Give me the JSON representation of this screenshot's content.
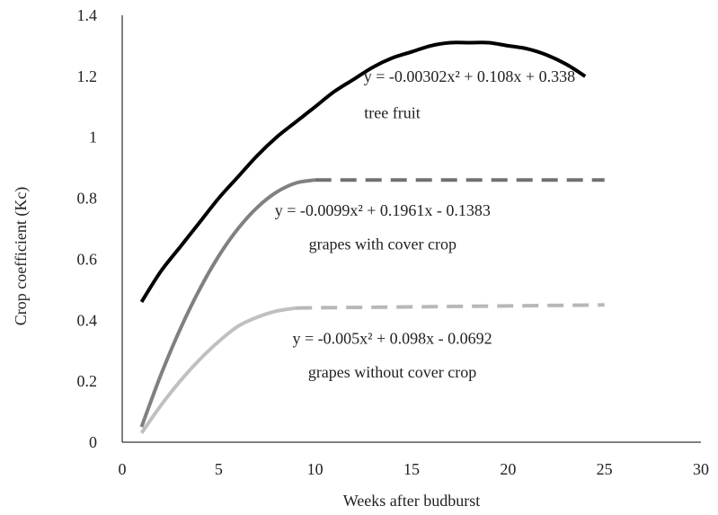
{
  "chart_data": {
    "type": "line",
    "title": "",
    "xlabel": "Weeks after budburst",
    "ylabel": "Crop coefficient (Kc)",
    "xlim": [
      0,
      30
    ],
    "ylim": [
      0,
      1.4
    ],
    "x_ticks": [
      "0",
      "5",
      "10",
      "15",
      "20",
      "25",
      "30"
    ],
    "y_ticks": [
      "0",
      "0.2",
      "0.4",
      "0.6",
      "0.8",
      "1",
      "1.2",
      "1.4"
    ],
    "grid": false,
    "legend": "none",
    "series": [
      {
        "key": "tree",
        "color": "#000000",
        "style": "solid",
        "x": [
          1,
          2,
          3,
          4,
          5,
          6,
          7,
          8,
          9,
          10,
          11,
          12,
          13,
          14,
          15,
          16,
          17,
          18,
          19,
          20,
          21,
          22,
          23,
          24
        ],
        "y": [
          0.46,
          0.56,
          0.64,
          0.72,
          0.8,
          0.87,
          0.94,
          1.0,
          1.05,
          1.1,
          1.15,
          1.19,
          1.23,
          1.26,
          1.28,
          1.3,
          1.31,
          1.31,
          1.31,
          1.3,
          1.29,
          1.27,
          1.24,
          1.2
        ]
      },
      {
        "key": "cover",
        "color": "#808080",
        "style": "solid",
        "x": [
          1,
          2,
          3,
          4,
          5,
          6,
          7,
          8,
          9,
          10
        ],
        "y": [
          0.05,
          0.22,
          0.37,
          0.5,
          0.61,
          0.7,
          0.77,
          0.82,
          0.85,
          0.86
        ]
      },
      {
        "key": "cover_plateau",
        "color": "#707070",
        "style": "dashed",
        "x": [
          10,
          25
        ],
        "y": [
          0.86,
          0.86
        ]
      },
      {
        "key": "nocover",
        "color": "#c0c0c0",
        "style": "solid",
        "x": [
          1,
          2,
          3,
          4,
          5,
          6,
          7,
          8,
          9
        ],
        "y": [
          0.03,
          0.12,
          0.2,
          0.27,
          0.33,
          0.38,
          0.41,
          0.43,
          0.44
        ]
      },
      {
        "key": "nocover_plateau",
        "color": "#b8b8b8",
        "style": "dashed",
        "x": [
          9,
          25
        ],
        "y": [
          0.44,
          0.45
        ]
      }
    ],
    "annotations": [
      {
        "key": "tree_eq",
        "x": 18,
        "y": 1.2,
        "anchor": "middle",
        "text": "y = -0.00302x² +  0.108x + 0.338"
      },
      {
        "key": "tree_name",
        "x": 14,
        "y": 1.08,
        "anchor": "middle",
        "text": "tree fruit"
      },
      {
        "key": "cover_eq",
        "x": 13.5,
        "y": 0.76,
        "anchor": "middle",
        "text": "y = -0.0099x²  + 0.1961x - 0.1383"
      },
      {
        "key": "cover_name",
        "x": 13.5,
        "y": 0.65,
        "anchor": "middle",
        "text": "grapes with cover crop"
      },
      {
        "key": "nocover_eq",
        "x": 14,
        "y": 0.34,
        "anchor": "middle",
        "text": "y = -0.005x² + 0.098x - 0.0692"
      },
      {
        "key": "nocover_name",
        "x": 14,
        "y": 0.23,
        "anchor": "middle",
        "text": "grapes without cover crop"
      }
    ]
  }
}
